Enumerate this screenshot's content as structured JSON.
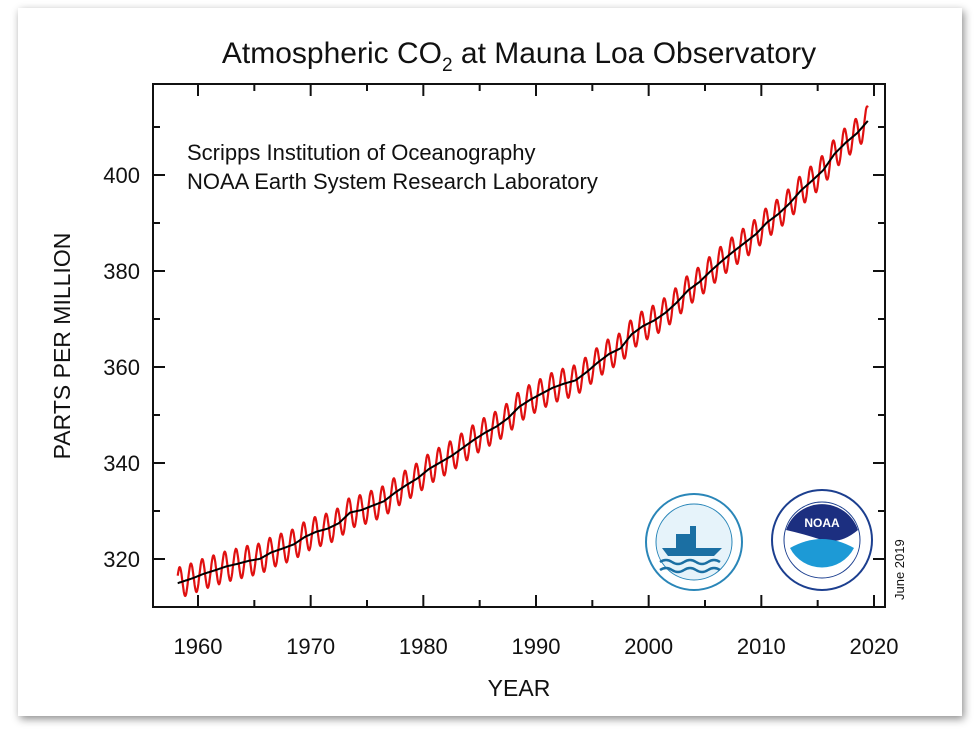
{
  "chart_data": {
    "type": "line",
    "title": "Atmospheric CO",
    "title_subscript": "2",
    "title_suffix": " at Mauna Loa Observatory",
    "xlabel": "YEAR",
    "ylabel": "PARTS PER MILLION",
    "xlim": [
      1956,
      2021
    ],
    "ylim": [
      310,
      418.8
    ],
    "x_ticks": [
      "1960",
      "1970",
      "1980",
      "1990",
      "2000",
      "2010",
      "2020"
    ],
    "y_ticks": [
      "320",
      "340",
      "360",
      "380",
      "400"
    ],
    "grid": false,
    "annotations": [
      "Scripps Institution of Oceanography",
      "NOAA Earth System Research Laboratory"
    ],
    "date_note": "June 2019",
    "logos": [
      "SCRIPPS INSTITUTION OF OCEANOGRAPHY UCSD",
      "NOAA NATIONAL OCEANIC AND ATMOSPHERIC ADMINISTRATION U.S. DEPARTMENT OF COMMERCE"
    ],
    "series": [
      {
        "kind": "monthly",
        "color": "#e01010",
        "seasonal_peak_to_peak": 6.4,
        "start": 1958.2,
        "end": 2019.45
      },
      {
        "kind": "seasonally-corrected",
        "color": "#000000"
      }
    ],
    "annual_mean": {
      "years": [
        1958,
        1959,
        1960,
        1961,
        1962,
        1963,
        1964,
        1965,
        1966,
        1967,
        1968,
        1969,
        1970,
        1971,
        1972,
        1973,
        1974,
        1975,
        1976,
        1977,
        1978,
        1979,
        1980,
        1981,
        1982,
        1983,
        1984,
        1985,
        1986,
        1987,
        1988,
        1989,
        1990,
        1991,
        1992,
        1993,
        1994,
        1995,
        1996,
        1997,
        1998,
        1999,
        2000,
        2001,
        2002,
        2003,
        2004,
        2005,
        2006,
        2007,
        2008,
        2009,
        2010,
        2011,
        2012,
        2013,
        2014,
        2015,
        2016,
        2017,
        2018,
        2019
      ],
      "ppm": [
        315.2,
        315.97,
        316.91,
        317.64,
        318.45,
        318.99,
        319.62,
        320.04,
        321.37,
        322.18,
        323.05,
        324.62,
        325.68,
        326.32,
        327.46,
        329.68,
        330.19,
        331.12,
        332.03,
        333.84,
        335.41,
        336.84,
        338.76,
        340.12,
        341.48,
        343.15,
        344.85,
        346.35,
        347.61,
        349.31,
        351.69,
        353.2,
        354.45,
        355.7,
        356.54,
        357.21,
        358.96,
        360.97,
        362.74,
        363.88,
        366.84,
        368.54,
        369.71,
        371.32,
        373.45,
        375.98,
        377.7,
        379.98,
        382.09,
        384.02,
        385.83,
        387.64,
        390.1,
        391.85,
        394.06,
        396.74,
        398.81,
        401.01,
        404.41,
        406.76,
        408.72,
        411.4
      ]
    }
  }
}
